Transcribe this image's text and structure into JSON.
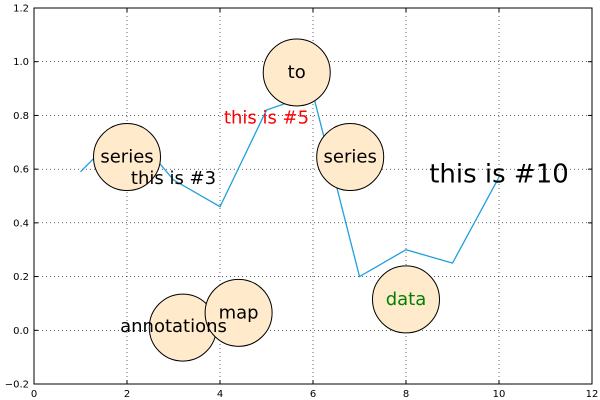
{
  "chart_data": {
    "type": "line",
    "title": "",
    "xlabel": "",
    "ylabel": "",
    "xlim": [
      0,
      12
    ],
    "ylim": [
      -0.2,
      1.2
    ],
    "x_ticks": [
      "0",
      "2",
      "4",
      "6",
      "8",
      "10",
      "12"
    ],
    "y_ticks": [
      "−0.2",
      "0.0",
      "0.2",
      "0.4",
      "0.6",
      "0.8",
      "1.0",
      "1.2"
    ],
    "x_tick_values": [
      0,
      2,
      4,
      6,
      8,
      10,
      12
    ],
    "y_tick_values": [
      -0.2,
      0.0,
      0.2,
      0.4,
      0.6,
      0.8,
      1.0,
      1.2
    ],
    "grid": true,
    "series": [
      {
        "color": "#1f9fdc",
        "x": [
          1,
          2,
          3,
          4,
          5,
          6,
          7,
          8,
          9,
          10
        ],
        "y": [
          0.59,
          0.765,
          0.56,
          0.46,
          0.82,
          0.88,
          0.2,
          0.3,
          0.25,
          0.57
        ]
      }
    ],
    "circles": [
      {
        "x": 2.0,
        "y": 0.645,
        "fill": "#ffebcc"
      },
      {
        "x": 5.65,
        "y": 0.96,
        "fill": "#ffebcc"
      },
      {
        "x": 6.8,
        "y": 0.645,
        "fill": "#ffebcc"
      },
      {
        "x": 8.0,
        "y": 0.115,
        "fill": "#ffebcc"
      },
      {
        "x": 3.2,
        "y": 0.01,
        "fill": "#ffebcc"
      },
      {
        "x": 4.4,
        "y": 0.065,
        "fill": "#ffebcc"
      }
    ],
    "annotations": [
      {
        "text": "series",
        "x": 2.0,
        "y": 0.645,
        "color": "#000000",
        "size": "medium"
      },
      {
        "text": "this is #3",
        "x": 3.0,
        "y": 0.565,
        "color": "#000000",
        "size": "medium"
      },
      {
        "text": "to",
        "x": 5.65,
        "y": 0.96,
        "color": "#000000",
        "size": "medium"
      },
      {
        "text": "this is #5",
        "x": 5.0,
        "y": 0.79,
        "color": "#ff0000",
        "size": "medium"
      },
      {
        "text": "series",
        "x": 6.8,
        "y": 0.645,
        "color": "#000000",
        "size": "medium"
      },
      {
        "text": "this is #10",
        "x": 10.0,
        "y": 0.58,
        "color": "#000000",
        "size": "large"
      },
      {
        "text": "data",
        "x": 8.0,
        "y": 0.115,
        "color": "#008000",
        "size": "medium"
      },
      {
        "text": "map",
        "x": 4.4,
        "y": 0.065,
        "color": "#000000",
        "size": "medium"
      },
      {
        "text": "annotations",
        "x": 3.0,
        "y": 0.015,
        "color": "#000000",
        "size": "medium"
      }
    ]
  }
}
